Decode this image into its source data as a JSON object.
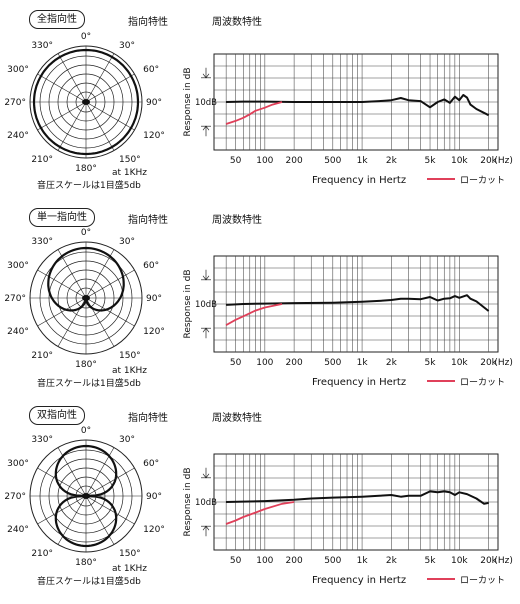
{
  "common": {
    "polar_heading": "指向特性",
    "freq_heading": "周波数特性",
    "angle_labels": [
      "0°",
      "30°",
      "60°",
      "90°",
      "120°",
      "150°",
      "180°",
      "210°",
      "240°",
      "270°",
      "300°",
      "330°"
    ],
    "note_freq": "at 1KHz",
    "note_scale": "音圧スケールは1目盛5db",
    "x_axis_label": "Frequency in Hertz",
    "y_axis_label": "Response in dB",
    "db_label": "10dB",
    "x_tick_labels": [
      "50",
      "100",
      "200",
      "500",
      "1k",
      "2k",
      "5k",
      "10k",
      "20k",
      "(Hz)"
    ],
    "legend_lowcut": "ローカット",
    "response_color": "#111111",
    "lowcut_color": "#e0405a"
  },
  "sections": [
    {
      "badge": "全指向性",
      "chart_data": {
        "type": "line",
        "pattern": "omnidirectional",
        "xscale": "log",
        "xlim": [
          30,
          25000
        ],
        "series": [
          {
            "x": [
              40,
              60,
              100,
              200,
              500,
              1000,
              1500,
              2000,
              2500,
              3000,
              4000,
              5000,
              6000,
              7000,
              8000,
              9000,
              10000,
              11000,
              12000,
              13000,
              15000,
              20000
            ],
            "y": [
              0,
              0.1,
              0.1,
              0,
              0,
              0,
              0.2,
              0.4,
              0.9,
              0.4,
              0.2,
              -1.2,
              0,
              0.6,
              -0.2,
              1.2,
              0.4,
              1.6,
              1,
              -0.6,
              -1.6,
              -3
            ]
          },
          {
            "name": "ローカット",
            "x": [
              40,
              50,
              60,
              70,
              80,
              100,
              120,
              150
            ],
            "y": [
              -5,
              -4.3,
              -3.6,
              -2.8,
              -2,
              -1.3,
              -0.6,
              0
            ]
          }
        ]
      }
    },
    {
      "badge": "単一指向性",
      "chart_data": {
        "type": "line",
        "pattern": "cardioid",
        "xscale": "log",
        "xlim": [
          30,
          25000
        ],
        "series": [
          {
            "x": [
              40,
              60,
              100,
              200,
              500,
              1000,
              1500,
              2000,
              2500,
              3000,
              4000,
              5000,
              6000,
              7000,
              8000,
              9000,
              10000,
              12000,
              13000,
              15000,
              20000
            ],
            "y": [
              -0.2,
              0,
              0.1,
              0.2,
              0.3,
              0.5,
              0.7,
              0.9,
              1.2,
              1.2,
              1.1,
              1.6,
              0.8,
              1.2,
              1.3,
              1.8,
              1.4,
              2,
              1.2,
              0.6,
              -1.6
            ]
          },
          {
            "name": "ローカット",
            "x": [
              40,
              50,
              60,
              80,
              100,
              150
            ],
            "y": [
              -4.8,
              -3.6,
              -2.8,
              -1.5,
              -0.8,
              0
            ]
          }
        ]
      }
    },
    {
      "badge": "双指向性",
      "chart_data": {
        "type": "line",
        "pattern": "figure-8",
        "xscale": "log",
        "xlim": [
          30,
          25000
        ],
        "series": [
          {
            "x": [
              40,
              60,
              100,
              200,
              300,
              500,
              1000,
              1500,
              2000,
              2500,
              3000,
              4000,
              5000,
              6000,
              7000,
              8000,
              9000,
              10000,
              12000,
              15000,
              18000,
              20000
            ],
            "y": [
              0,
              0.1,
              0.2,
              0.5,
              0.8,
              1,
              1.2,
              1.4,
              1.6,
              1.2,
              1.4,
              1.4,
              2.4,
              2.2,
              2.4,
              2.2,
              1.6,
              2.2,
              1.8,
              0.8,
              -0.4,
              -0.2
            ]
          },
          {
            "name": "ローカット",
            "x": [
              40,
              50,
              60,
              80,
              100,
              150,
              200
            ],
            "y": [
              -5,
              -4.2,
              -3.4,
              -2.4,
              -1.6,
              -0.4,
              0
            ]
          }
        ]
      }
    }
  ]
}
